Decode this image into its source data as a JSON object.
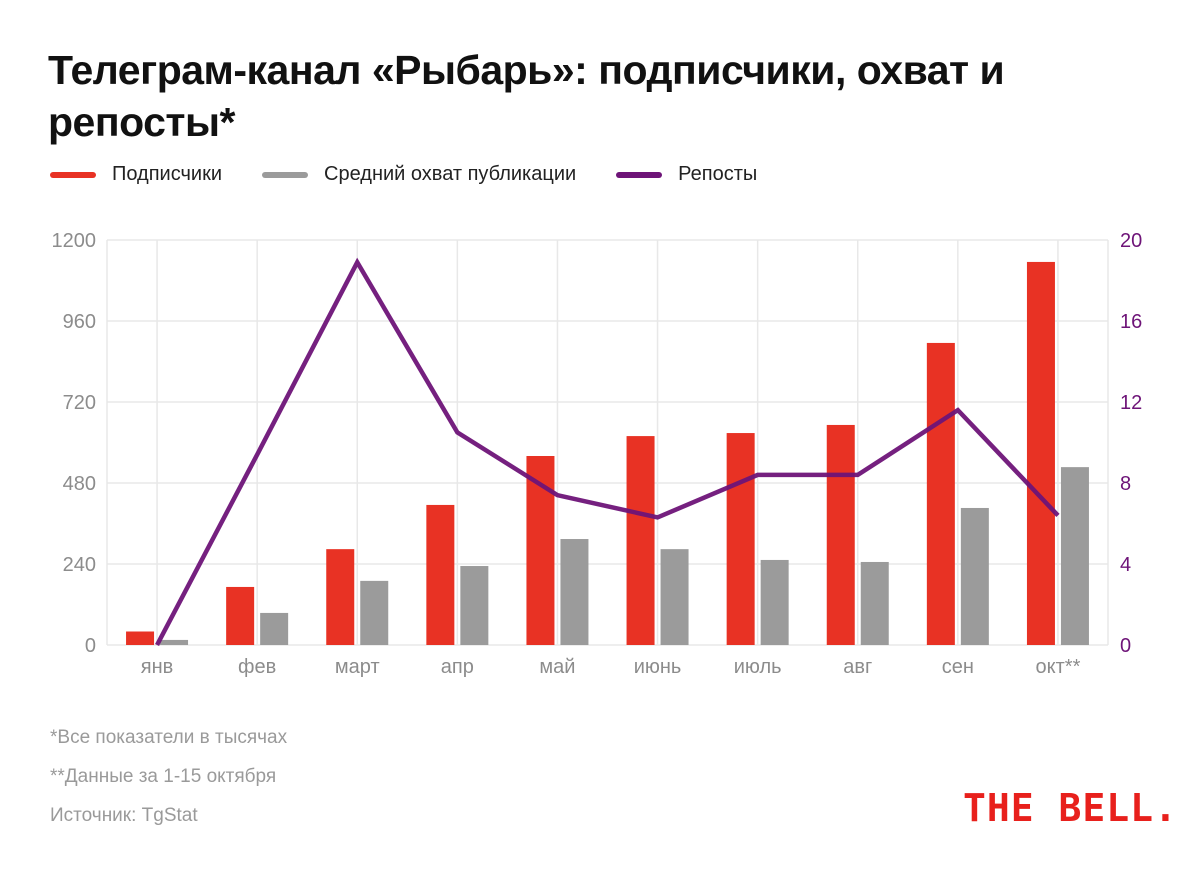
{
  "title": "Телеграм-канал «Рыбарь»: подписчики, охват и репосты*",
  "notes": [
    "*Все показатели в тысячах",
    "**Данные за 1-15 октября",
    "Источник: TgStat"
  ],
  "logo": "THE BELL.",
  "chart_data": {
    "type": "bar",
    "title": "Телеграм-канал «Рыбарь»: подписчики, охват и репосты*",
    "categories": [
      "янв",
      "фев",
      "март",
      "апр",
      "май",
      "июнь",
      "июль",
      "авг",
      "сен",
      "окт**"
    ],
    "series": [
      {
        "name": "Подписчики",
        "kind": "bar",
        "axis": "left",
        "color": "#e83224",
        "values": [
          40,
          172,
          284,
          415,
          560,
          619,
          628,
          652,
          895,
          1135
        ]
      },
      {
        "name": "Средний охват публикации",
        "kind": "bar",
        "axis": "left",
        "color": "#9b9b9b",
        "values": [
          15,
          95,
          190,
          234,
          314,
          284,
          252,
          246,
          406,
          527
        ]
      },
      {
        "name": "Репосты",
        "kind": "line",
        "axis": "right",
        "color": "#6e1478",
        "values": [
          0,
          9.4,
          18.9,
          10.5,
          7.4,
          6.3,
          8.4,
          8.4,
          11.6,
          6.4
        ]
      }
    ],
    "yleft": {
      "range": [
        0,
        1200
      ],
      "ticks": [
        0,
        240,
        480,
        720,
        960,
        1200
      ]
    },
    "yright": {
      "range": [
        0,
        20
      ],
      "ticks": [
        0,
        4,
        8,
        12,
        16,
        20
      ],
      "color": "#6e1478"
    },
    "grid": true,
    "legend_position": "top-left"
  }
}
